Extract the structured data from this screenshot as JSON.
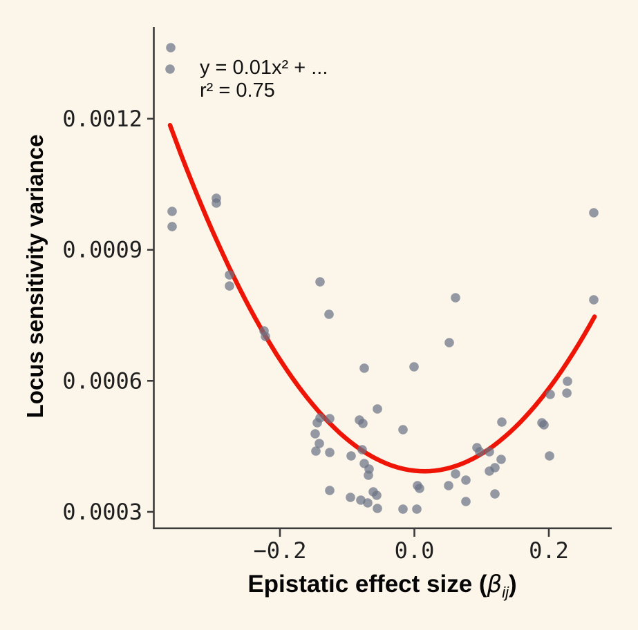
{
  "chart_data": {
    "type": "scatter",
    "xlabel": {
      "prefix": "Epistatic effect size (",
      "beta": "β",
      "subscript": "ij",
      "suffix": ")"
    },
    "ylabel": "Locus sensitivity variance",
    "annotation": {
      "equation": "y = 0.01x² + ...",
      "r_squared": "r² = 0.75"
    },
    "x_ticks": [
      {
        "label": "−0.2",
        "value": -0.2
      },
      {
        "label": "0.0",
        "value": 0.0
      },
      {
        "label": "0.2",
        "value": 0.2
      }
    ],
    "y_ticks": [
      {
        "label": "0.0003",
        "value": 0.0003
      },
      {
        "label": "0.0006",
        "value": 0.0006
      },
      {
        "label": "0.0009",
        "value": 0.0009
      },
      {
        "label": "0.0012",
        "value": 0.0012
      }
    ],
    "xlim": [
      -0.388,
      0.294
    ],
    "ylim": [
      0.000264,
      0.001409
    ],
    "grid": false,
    "points": [
      [
        -0.3625,
        0.0013627
      ],
      [
        -0.3635,
        0.0013137
      ],
      [
        -0.3604,
        0.000988
      ],
      [
        -0.3604,
        0.0009531
      ],
      [
        -0.2946,
        0.001018
      ],
      [
        -0.2946,
        0.0010069
      ],
      [
        -0.2751,
        0.0008424
      ],
      [
        -0.2751,
        0.0008171
      ],
      [
        -0.2237,
        0.0007143
      ],
      [
        -0.2216,
        0.0007017
      ],
      [
        -0.1404,
        0.0008266
      ],
      [
        -0.127,
        0.0007523
      ],
      [
        0.0612,
        0.0007902
      ],
      [
        0.0519,
        0.0006874
      ],
      [
        -0.0746,
        0.0006289
      ],
      [
        -0.0005,
        0.0006321
      ],
      [
        -0.055,
        0.0005356
      ],
      [
        -0.1404,
        0.0005151
      ],
      [
        -0.1445,
        0.000504
      ],
      [
        -0.126,
        0.0005135
      ],
      [
        -0.0817,
        0.0005103
      ],
      [
        -0.0766,
        0.0005024
      ],
      [
        -0.017,
        0.0004882
      ],
      [
        -0.1476,
        0.0004787
      ],
      [
        -0.1414,
        0.0004566
      ],
      [
        -0.1465,
        0.0004392
      ],
      [
        -0.126,
        0.000436
      ],
      [
        -0.0941,
        0.0004281
      ],
      [
        -0.0776,
        0.0004423
      ],
      [
        -0.0746,
        0.0004107
      ],
      [
        -0.0674,
        0.000398
      ],
      [
        -0.0684,
        0.0003838
      ],
      [
        -0.126,
        0.000349
      ],
      [
        -0.0951,
        0.0003332
      ],
      [
        -0.0797,
        0.0003269
      ],
      [
        -0.0612,
        0.0003459
      ],
      [
        -0.056,
        0.000338
      ],
      [
        -0.0694,
        0.0003206
      ],
      [
        -0.055,
        0.0003079
      ],
      [
        -0.017,
        0.0003063
      ],
      [
        0.0046,
        0.0003601
      ],
      [
        0.0077,
        0.0003538
      ],
      [
        0.0036,
        0.0003063
      ],
      [
        0.0509,
        0.0003601
      ],
      [
        0.2021,
        0.0005688
      ],
      [
        0.2268,
        0.000572
      ],
      [
        0.1301,
        0.0005056
      ],
      [
        0.1897,
        0.000504
      ],
      [
        0.1928,
        0.0004993
      ],
      [
        0.0931,
        0.0004471
      ],
      [
        0.0972,
        0.0004376
      ],
      [
        0.1116,
        0.0004376
      ],
      [
        0.129,
        0.0004202
      ],
      [
        0.1198,
        0.0004012
      ],
      [
        0.1116,
        0.0003933
      ],
      [
        0.0612,
        0.000387
      ],
      [
        0.0766,
        0.0003727
      ],
      [
        0.1198,
        0.0003411
      ],
      [
        0.0766,
        0.0003237
      ],
      [
        0.201,
        0.0004281
      ],
      [
        0.2668,
        0.0009848
      ],
      [
        0.2668,
        0.0007855
      ],
      [
        0.2278,
        0.0005989
      ]
    ],
    "fit_curve": {
      "type": "quadratic",
      "a": 0.00553,
      "vertex_x": 0.015,
      "vertex_y": 0.000393,
      "x_domain": [
        -0.3635,
        0.268
      ]
    },
    "colors": {
      "background": "#fcf5ea",
      "point": "#6b7487",
      "curve": "#ee1506",
      "axis": "#3b3b3b",
      "text": "#121212"
    }
  }
}
